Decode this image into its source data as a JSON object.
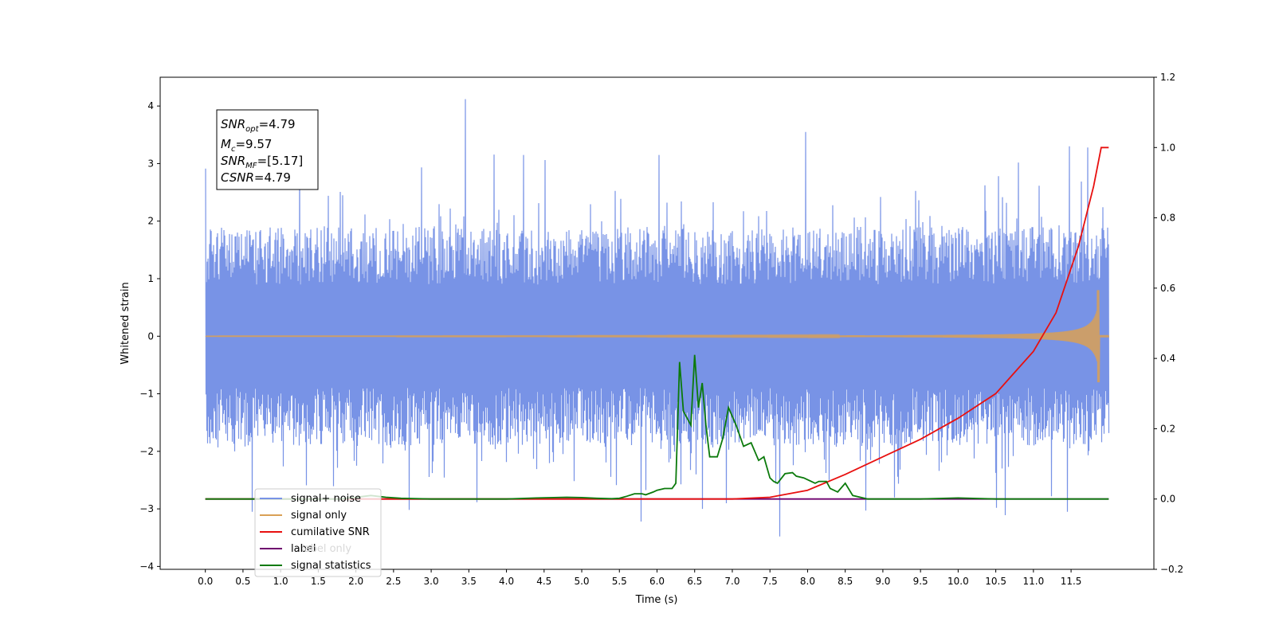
{
  "chart_data": {
    "type": "line",
    "title": "",
    "xlabel": "Time (s)",
    "ylabel": "Whitened strain",
    "ylabel_right": "",
    "xlim": [
      -0.6,
      12.6
    ],
    "ylim": [
      -4.05,
      4.5
    ],
    "ylim_right": [
      -0.2,
      1.2
    ],
    "x_ticks": [
      0.0,
      0.5,
      1.0,
      1.5,
      2.0,
      2.5,
      3.0,
      3.5,
      4.0,
      4.5,
      5.0,
      5.5,
      6.0,
      6.5,
      7.0,
      7.5,
      8.0,
      8.5,
      9.0,
      9.5,
      10.0,
      10.5,
      11.0,
      11.5
    ],
    "x_tick_labels": [
      "0.0",
      "0.5",
      "1.0",
      "1.5",
      "2.0",
      "2.5",
      "3.0",
      "3.5",
      "4.0",
      "4.5",
      "5.0",
      "5.5",
      "6.0",
      "6.5",
      "7.0",
      "7.5",
      "8.0",
      "8.5",
      "9.0",
      "9.5",
      "10.0",
      "10.5",
      "11.0",
      "11.5"
    ],
    "y_ticks": [
      -4,
      -3,
      -2,
      -1,
      0,
      1,
      2,
      3,
      4
    ],
    "y_tick_labels": [
      "−4",
      "−3",
      "−2",
      "−1",
      "0",
      "1",
      "2",
      "3",
      "4"
    ],
    "y_ticks_right": [
      -0.2,
      0.0,
      0.2,
      0.4,
      0.6,
      0.8,
      1.0,
      1.2
    ],
    "y_tick_labels_right": [
      "−0.2",
      "0.0",
      "0.2",
      "0.4",
      "0.6",
      "0.8",
      "1.0",
      "1.2"
    ],
    "grid": false,
    "legend_position": "lower-left",
    "annotation": {
      "snr_opt": {
        "symbol": "SNR",
        "sub": "opt",
        "value": "=4.79"
      },
      "mc": {
        "symbol": "M",
        "sub": "c",
        "value": "=9.57"
      },
      "snr_mf": {
        "symbol": "SNR",
        "sub": "MF",
        "value": "=[5.17]"
      },
      "csnr": {
        "symbol": "CSNR",
        "value": "=4.79"
      }
    },
    "series": [
      {
        "name": "signal+ noise",
        "color": "#7893e6",
        "axis": "left",
        "kind": "noise",
        "x_range": [
          0.0,
          12.0
        ],
        "mean": 0.0,
        "typical_amplitude": 1.0,
        "spikes": [
          [
            3.45,
            4.12
          ],
          [
            7.62,
            -3.48
          ],
          [
            5.78,
            -3.22
          ],
          [
            6.6,
            -3.0
          ],
          [
            7.97,
            3.55
          ],
          [
            1.25,
            3.37
          ],
          [
            11.45,
            -3.05
          ],
          [
            0.62,
            -3.05
          ],
          [
            8.77,
            -3.03
          ],
          [
            10.5,
            -2.98
          ],
          [
            6.03,
            3.15
          ],
          [
            11.48,
            3.3
          ],
          [
            11.72,
            3.28
          ]
        ]
      },
      {
        "name": "signal only",
        "color": "#d9a055",
        "axis": "left",
        "kind": "chirp",
        "x_range": [
          0.0,
          12.0
        ],
        "peak_time": 11.88,
        "peak_amplitude": 0.8
      },
      {
        "name": "cumilative SNR",
        "color": "#e8100f",
        "axis": "right",
        "x": [
          0.0,
          7.0,
          7.5,
          8.0,
          8.5,
          9.0,
          9.5,
          10.0,
          10.5,
          11.0,
          11.3,
          11.6,
          11.8,
          11.9,
          12.0
        ],
        "values": [
          0.0,
          0.0,
          0.005,
          0.025,
          0.07,
          0.12,
          0.17,
          0.23,
          0.3,
          0.42,
          0.53,
          0.72,
          0.89,
          1.0,
          1.0
        ]
      },
      {
        "name": "label",
        "color": "#6e006e",
        "axis": "right",
        "x": [
          0.0,
          12.0
        ],
        "values": [
          0.0,
          0.0
        ]
      },
      {
        "name": "label only",
        "color": "#d0d0d0",
        "axis": "right",
        "x": [],
        "values": []
      },
      {
        "name": "signal statistics",
        "color": "#0b7a0b",
        "axis": "right",
        "x": [
          0.0,
          1.8,
          2.0,
          2.2,
          2.4,
          2.6,
          3.0,
          4.0,
          4.4,
          4.8,
          5.0,
          5.2,
          5.4,
          5.5,
          5.6,
          5.7,
          5.8,
          5.85,
          5.95,
          6.0,
          6.1,
          6.2,
          6.25,
          6.3,
          6.35,
          6.45,
          6.5,
          6.55,
          6.6,
          6.65,
          6.7,
          6.8,
          6.87,
          6.95,
          7.05,
          7.15,
          7.25,
          7.35,
          7.42,
          7.5,
          7.55,
          7.6,
          7.7,
          7.8,
          7.85,
          7.95,
          8.0,
          8.1,
          8.15,
          8.25,
          8.3,
          8.4,
          8.5,
          8.6,
          8.7,
          8.8,
          9.0,
          9.5,
          10.0,
          10.5,
          11.0,
          11.5,
          12.0
        ],
        "values": [
          0.0,
          0.0,
          0.005,
          0.01,
          0.005,
          0.002,
          0.0,
          0.0,
          0.003,
          0.005,
          0.004,
          0.002,
          0.001,
          0.002,
          0.008,
          0.015,
          0.015,
          0.012,
          0.02,
          0.025,
          0.03,
          0.03,
          0.045,
          0.39,
          0.25,
          0.21,
          0.41,
          0.26,
          0.33,
          0.21,
          0.12,
          0.12,
          0.17,
          0.26,
          0.21,
          0.15,
          0.16,
          0.11,
          0.12,
          0.06,
          0.05,
          0.045,
          0.072,
          0.075,
          0.065,
          0.06,
          0.055,
          0.045,
          0.05,
          0.05,
          0.03,
          0.02,
          0.045,
          0.01,
          0.005,
          0.0,
          0.0,
          0.0,
          0.003,
          0.0,
          0.0,
          0.0,
          0.0
        ]
      }
    ]
  }
}
